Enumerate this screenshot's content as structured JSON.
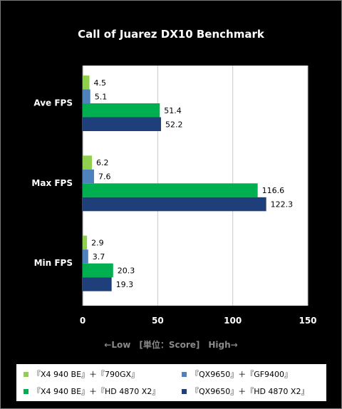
{
  "chart_data": {
    "type": "bar",
    "orientation": "horizontal",
    "title": "Call of Juarez DX10 Benchmark",
    "categories": [
      "Ave FPS",
      "Max FPS",
      "Min FPS"
    ],
    "series": [
      {
        "name": "『X4 940 BE』＋『790GX』",
        "color": "#8fd14f",
        "values": [
          4.5,
          6.2,
          2.9
        ]
      },
      {
        "name": "『QX9650』＋『GF9400』",
        "color": "#4f81bd",
        "values": [
          5.1,
          7.6,
          3.7
        ]
      },
      {
        "name": "『X4 940 BE』＋『HD 4870 X2』",
        "color": "#00b050",
        "values": [
          51.4,
          116.6,
          20.3
        ]
      },
      {
        "name": "『QX9650』＋『HD 4870 X2』",
        "color": "#1f3f7a",
        "values": [
          52.2,
          122.3,
          19.3
        ]
      }
    ],
    "xlim": [
      0,
      150
    ],
    "xticks": [
      0,
      50,
      100,
      150
    ],
    "grid": true,
    "axis_caption": "←Low　[単位：Score]　High→",
    "legend_position": "bottom"
  }
}
